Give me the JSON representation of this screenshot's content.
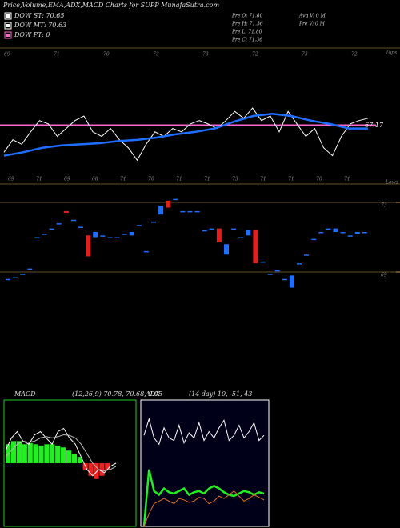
{
  "header": {
    "title": "Price,Volume,EMA,ADX,MACD Charts for SUPP MunafaSutra.com",
    "legend": [
      {
        "label": "DOW ST: 70.65",
        "color": "#ffffff"
      },
      {
        "label": "DOW MT: 70.63",
        "color": "#ffffff"
      },
      {
        "label": "DOW PT: 0",
        "color": "#ff66cc"
      }
    ],
    "info": [
      "Pre  O: 71.80",
      "Pre  H: 71.36",
      "Pre  L: 71.80",
      "Pre  C: 71.36",
      "Avg  V: 0  M",
      "Pre  V: 0  M"
    ]
  },
  "chart_data": [
    {
      "type": "line",
      "ylim": [
        62,
        74
      ],
      "top_note": "Tops",
      "bottom_note": "Lows",
      "top_labels": [
        "69",
        "71",
        "70",
        "73",
        "73",
        "72",
        "73",
        "72"
      ],
      "bottom_labels": [
        "69",
        "71",
        "69",
        "68",
        "71",
        "70",
        "71",
        "71",
        "73",
        "71",
        "71",
        "70",
        "71"
      ],
      "level": 67.17,
      "level_color": "#ff66cc",
      "series": [
        {
          "color": "#ffffff",
          "values": [
            64.8,
            65.9,
            65.5,
            66.6,
            67.6,
            67.3,
            66.2,
            66.9,
            67.6,
            68.0,
            66.6,
            66.2,
            66.9,
            65.9,
            65.2,
            64.1,
            65.5,
            66.6,
            66.2,
            66.9,
            66.6,
            67.3,
            67.6,
            67.3,
            66.9,
            67.6,
            68.4,
            67.8,
            68.7,
            67.6,
            68.0,
            66.6,
            68.4,
            67.3,
            66.2,
            66.9,
            65.2,
            64.5,
            66.2,
            67.3,
            67.6,
            67.8
          ]
        },
        {
          "color": "#1e6fff",
          "values": [
            64.5,
            64.8,
            65.2,
            65.4,
            65.5,
            65.6,
            65.8,
            65.9,
            66.1,
            66.4,
            66.6,
            66.9,
            67.5,
            68.0,
            68.2,
            68.0,
            67.6,
            67.3,
            66.9,
            66.9
          ]
        }
      ]
    },
    {
      "type": "candlestick",
      "ylim": [
        66.5,
        73.5
      ],
      "yticks": [
        73,
        69
      ],
      "up_color": "#1e6fff",
      "down_color": "#e02020",
      "opens": [
        68.6,
        68.7,
        68.9,
        69.2,
        71.0,
        71.2,
        71.5,
        71.8,
        72.5,
        72.0,
        71.6,
        71.1,
        71.0,
        71.1,
        71.0,
        71.0,
        71.2,
        71.1,
        71.7,
        70.2,
        71.9,
        72.3,
        73.1,
        73.2,
        72.5,
        72.5,
        72.5,
        71.4,
        71.5,
        71.5,
        70.0,
        71.5,
        71.0,
        71.1,
        71.4,
        69.6,
        68.9,
        69.1,
        68.6,
        68.1,
        69.5,
        70.0,
        70.9,
        71.3,
        71.5,
        71.3,
        71.3,
        71.1,
        71.2,
        71.3
      ],
      "closes": [
        68.6,
        68.7,
        68.9,
        69.2,
        71.0,
        71.2,
        71.5,
        71.8,
        72.4,
        72.0,
        71.6,
        69.9,
        71.3,
        71.1,
        71.0,
        71.0,
        71.2,
        71.3,
        71.7,
        70.2,
        71.9,
        72.8,
        72.7,
        73.2,
        72.5,
        72.5,
        72.5,
        71.4,
        71.5,
        70.7,
        70.6,
        71.5,
        71.0,
        71.4,
        69.5,
        69.6,
        68.9,
        69.1,
        68.6,
        68.8,
        69.5,
        70.0,
        70.9,
        71.3,
        71.5,
        71.5,
        71.3,
        71.1,
        71.3,
        71.3
      ]
    },
    {
      "type": "macd",
      "title": "MACD",
      "params": "(12,26,9) 70.78, 70.68, 0.05",
      "ylim": [
        -1,
        1
      ],
      "histogram": [
        0.3,
        0.35,
        0.35,
        0.3,
        0.32,
        0.3,
        0.28,
        0.3,
        0.3,
        0.28,
        0.25,
        0.2,
        0.15,
        0.1,
        -0.1,
        -0.2,
        -0.25,
        -0.2,
        -0.1,
        0
      ],
      "series": [
        {
          "color": "#ffffff",
          "values": [
            0.2,
            0.4,
            0.5,
            0.35,
            0.3,
            0.45,
            0.5,
            0.4,
            0.3,
            0.5,
            0.55,
            0.4,
            0.3,
            0.1,
            -0.1,
            -0.2,
            -0.1,
            -0.15,
            -0.05,
            0
          ]
        },
        {
          "color": "#bbbbbb",
          "values": [
            0.1,
            0.2,
            0.3,
            0.35,
            0.33,
            0.35,
            0.4,
            0.42,
            0.4,
            0.42,
            0.45,
            0.44,
            0.4,
            0.3,
            0.15,
            0,
            -0.1,
            -0.12,
            -0.1,
            -0.05
          ]
        }
      ]
    },
    {
      "type": "adx",
      "title": "ADX",
      "params": "(14 day) 10, -51, 43",
      "ylim": [
        0,
        100
      ],
      "series": [
        {
          "color": "#ffffff",
          "values": [
            72,
            85,
            70,
            65,
            78,
            70,
            68,
            80,
            66,
            74,
            70,
            82,
            68,
            75,
            70,
            78,
            84,
            68,
            72,
            80,
            70,
            75,
            82,
            68,
            72
          ]
        },
        {
          "color": "#22ee22",
          "values": [
            0,
            45,
            28,
            25,
            30,
            27,
            26,
            28,
            30,
            25,
            27,
            28,
            26,
            30,
            32,
            30,
            27,
            25,
            24,
            26,
            28,
            27,
            25,
            27,
            26
          ]
        },
        {
          "color": "#e07020",
          "values": [
            0,
            10,
            18,
            20,
            22,
            20,
            18,
            22,
            21,
            19,
            20,
            23,
            22,
            18,
            20,
            24,
            22,
            25,
            28,
            24,
            20,
            22,
            25,
            23,
            21
          ]
        }
      ]
    }
  ]
}
